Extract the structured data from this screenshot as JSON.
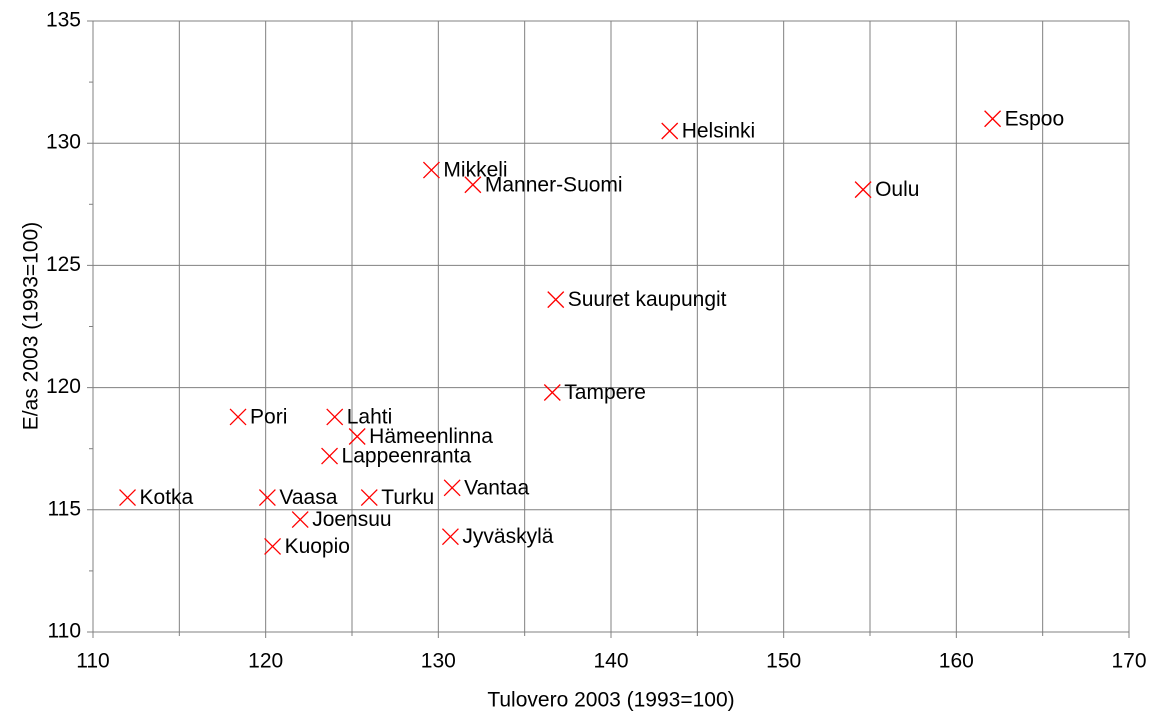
{
  "chart_data": {
    "type": "scatter",
    "x_label": "Tulovero 2003 (1993=100)",
    "y_label": "E/as 2003 (1993=100)",
    "point_labels": [
      "Espoo",
      "Helsinki",
      "Mikkeli",
      "Manner-Suomi",
      "Oulu",
      "Suuret kaupungit",
      "Tampere",
      "Pori",
      "Lahti",
      "Hämeenlinna",
      "Lappeenranta",
      "Vantaa",
      "Kotka",
      "Vaasa",
      "Turku",
      "Joensuu",
      "Jyväskylä",
      "Kuopio"
    ],
    "x": [
      162.1,
      143.4,
      129.6,
      132.0,
      154.6,
      136.8,
      136.6,
      118.4,
      124.0,
      125.3,
      123.7,
      130.8,
      112.0,
      120.1,
      126.0,
      122.0,
      130.7,
      120.4
    ],
    "values": [
      131.0,
      130.5,
      128.9,
      128.3,
      128.1,
      123.6,
      119.8,
      118.8,
      118.8,
      118.0,
      117.2,
      115.9,
      115.5,
      115.5,
      115.5,
      114.6,
      113.9,
      113.5
    ],
    "color": "#ff0000",
    "xlim": [
      110,
      170
    ],
    "xticks": [
      110,
      120,
      130,
      140,
      150,
      160,
      170
    ],
    "x_minor_ticks": [
      115,
      125,
      135,
      145,
      155,
      165
    ],
    "ylim": [
      110,
      135
    ],
    "yticks": [
      110,
      115,
      120,
      125,
      130,
      135
    ],
    "y_minor_ticks": [
      112.5,
      117.5,
      122.5,
      127.5,
      132.5
    ],
    "grid": true
  }
}
